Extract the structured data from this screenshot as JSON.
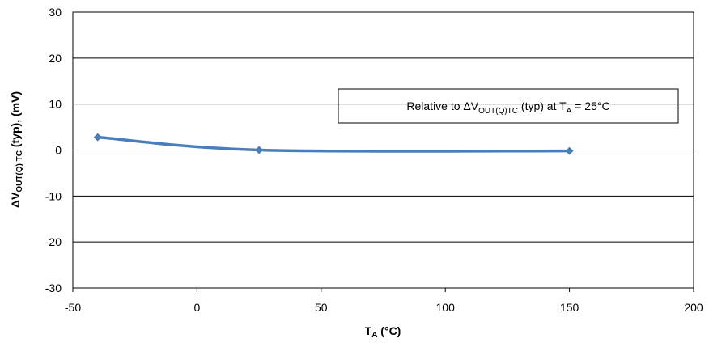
{
  "chart_data": {
    "type": "line",
    "x_label": [
      "T",
      "A",
      " (°C)"
    ],
    "y_label": [
      "ΔV",
      "OUT(Q) TC",
      " (typ), (mV)"
    ],
    "annotation": [
      "Relative to ΔV",
      "OUT(Q)TC",
      " (typ) at T",
      "A",
      " = 25°C"
    ],
    "x": [
      -40,
      25,
      150
    ],
    "series": [
      {
        "color": "#4a7ebb",
        "values": [
          2.8,
          0,
          -0.2
        ]
      }
    ],
    "xlim": [
      -50,
      200
    ],
    "xticks": [
      -50,
      0,
      50,
      100,
      150,
      200
    ],
    "ylim": [
      -30,
      30
    ],
    "yticks": [
      -30,
      -20,
      -10,
      0,
      10,
      20,
      30
    ],
    "grid": true
  }
}
